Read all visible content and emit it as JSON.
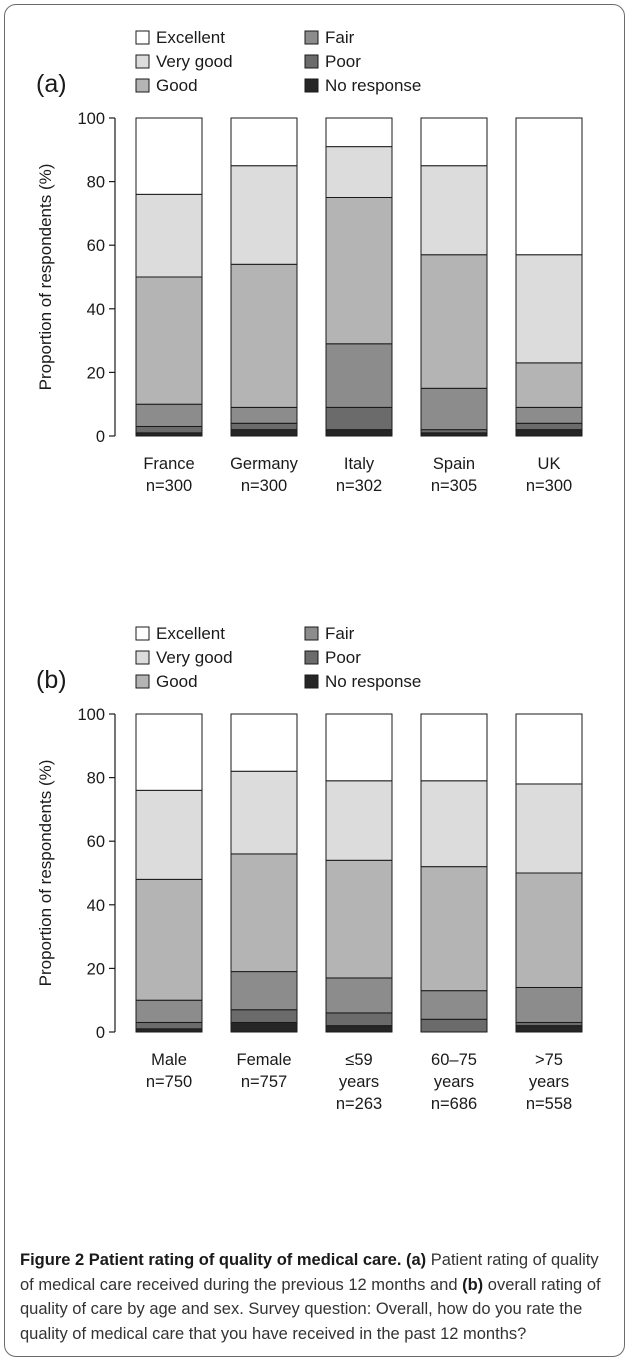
{
  "legend": [
    "Excellent",
    "Very good",
    "Good",
    "Fair",
    "Poor",
    "No response"
  ],
  "colors": {
    "Excellent": "#ffffff",
    "Very good": "#dcdcdc",
    "Good": "#b4b4b4",
    "Fair": "#8c8c8c",
    "Poor": "#6b6b6b",
    "No response": "#262626"
  },
  "chart_data": [
    {
      "type": "bar",
      "stacked": true,
      "panel_label": "(a)",
      "ylabel": "Proportion of respondents (%)",
      "ylim": [
        0,
        100
      ],
      "yticks": [
        0,
        20,
        40,
        60,
        80,
        100
      ],
      "categories": [
        [
          "France",
          "n=300"
        ],
        [
          "Germany",
          "n=300"
        ],
        [
          "Italy",
          "n=302"
        ],
        [
          "Spain",
          "n=305"
        ],
        [
          "UK",
          "n=300"
        ]
      ],
      "series": [
        {
          "name": "No response",
          "values": [
            1,
            2,
            2,
            1,
            2
          ]
        },
        {
          "name": "Poor",
          "values": [
            2,
            2,
            7,
            1,
            2
          ]
        },
        {
          "name": "Fair",
          "values": [
            7,
            5,
            20,
            13,
            5
          ]
        },
        {
          "name": "Good",
          "values": [
            40,
            45,
            46,
            42,
            14
          ]
        },
        {
          "name": "Very good",
          "values": [
            26,
            31,
            16,
            28,
            34
          ]
        },
        {
          "name": "Excellent",
          "values": [
            24,
            15,
            9,
            15,
            43
          ]
        }
      ]
    },
    {
      "type": "bar",
      "stacked": true,
      "panel_label": "(b)",
      "ylabel": "Proportion of respondents (%)",
      "ylim": [
        0,
        100
      ],
      "yticks": [
        0,
        20,
        40,
        60,
        80,
        100
      ],
      "categories": [
        [
          "Male",
          "n=750"
        ],
        [
          "Female",
          "n=757"
        ],
        [
          "≤59",
          "years",
          "n=263"
        ],
        [
          "60–75",
          "years",
          "n=686"
        ],
        [
          ">75",
          "years",
          "n=558"
        ]
      ],
      "series": [
        {
          "name": "No response",
          "values": [
            1,
            3,
            2,
            0,
            2
          ]
        },
        {
          "name": "Poor",
          "values": [
            2,
            4,
            4,
            4,
            1
          ]
        },
        {
          "name": "Fair",
          "values": [
            7,
            12,
            11,
            9,
            11
          ]
        },
        {
          "name": "Good",
          "values": [
            38,
            37,
            37,
            39,
            36
          ]
        },
        {
          "name": "Very good",
          "values": [
            28,
            26,
            25,
            27,
            28
          ]
        },
        {
          "name": "Excellent",
          "values": [
            24,
            18,
            21,
            21,
            22
          ]
        }
      ]
    }
  ],
  "caption": {
    "title": "Figure 2 Patient rating of quality of medical care.",
    "a_label": "(a)",
    "text1": "Patient rating of quality of medical care received during the previous 12 months and",
    "b_label": "(b)",
    "text2": "overall rating of quality of care by age and sex. Survey question: Overall, how do you rate the quality of medical care that you have received in the past 12 months?"
  }
}
